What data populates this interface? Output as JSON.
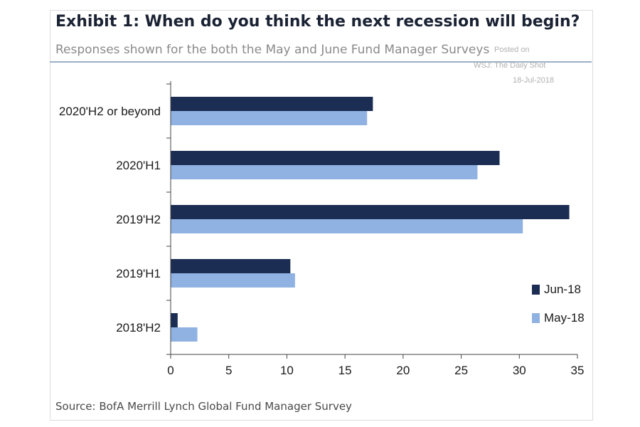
{
  "header": {
    "title": "Exhibit 1: When do you think the next recession will begin?",
    "subtitle": "Responses shown for the both the May and June Fund Manager Surveys"
  },
  "watermark": {
    "line1": "Posted on",
    "line2": "WSJ: The Daily Shot",
    "line3": "18-Jul-2018"
  },
  "footer": {
    "source": "Source:  BofA Merrill Lynch Global Fund Manager Survey"
  },
  "colors": {
    "jun": "#1b2d52",
    "may": "#90b2e2",
    "axis": "#444444"
  },
  "chart_data": {
    "type": "bar",
    "orientation": "horizontal",
    "categories": [
      "2020'H2 or beyond",
      "2020'H1",
      "2019'H2",
      "2019'H1",
      "2018'H2"
    ],
    "series": [
      {
        "name": "Jun-18",
        "values": [
          17.4,
          28.3,
          34.3,
          10.3,
          0.6
        ]
      },
      {
        "name": "May-18",
        "values": [
          16.9,
          26.4,
          30.3,
          10.7,
          2.3
        ]
      }
    ],
    "xlim": [
      0,
      35
    ],
    "xticks": [
      "0",
      "5",
      "10",
      "15",
      "20",
      "25",
      "30",
      "35"
    ],
    "legend": "bottom-right",
    "grid": false
  }
}
